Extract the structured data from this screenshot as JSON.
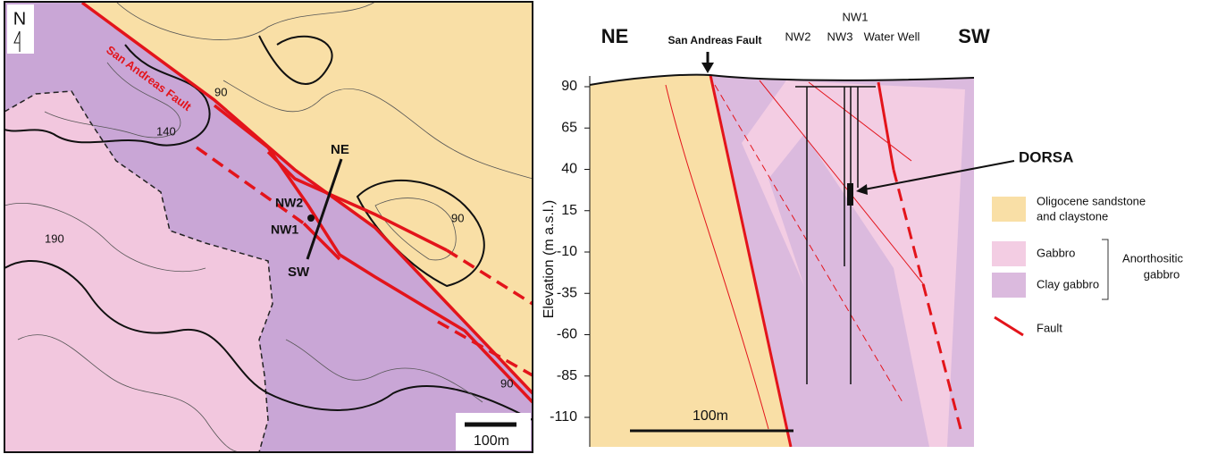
{
  "map": {
    "north": "N",
    "fault_label": "San Andreas Fault",
    "contours": [
      "90",
      "90",
      "90",
      "140",
      "190"
    ],
    "ne": "NE",
    "nw2": "NW2",
    "nw1": "NW1",
    "sw": "SW",
    "scale": "100m"
  },
  "section": {
    "ne": "NE",
    "sw": "SW",
    "fault_label": "San Andreas Fault",
    "nw2": "NW2",
    "nw1": "NW1",
    "nw3": "NW3",
    "well": "Water Well",
    "dorsa": "DORSA",
    "axis_label": "Elevation (m a.s.l.)",
    "yticks": [
      90,
      65,
      40,
      15,
      -10,
      -35,
      -60,
      -85,
      -110
    ],
    "scale": "100m"
  },
  "legend": {
    "sandstone": [
      "Oligocene sandstone",
      "and claystone"
    ],
    "gabbro": "Gabbro",
    "clay_gabbro": "Clay gabbro",
    "group": [
      "Anorthositic",
      "gabbro"
    ],
    "fault": "Fault"
  }
}
